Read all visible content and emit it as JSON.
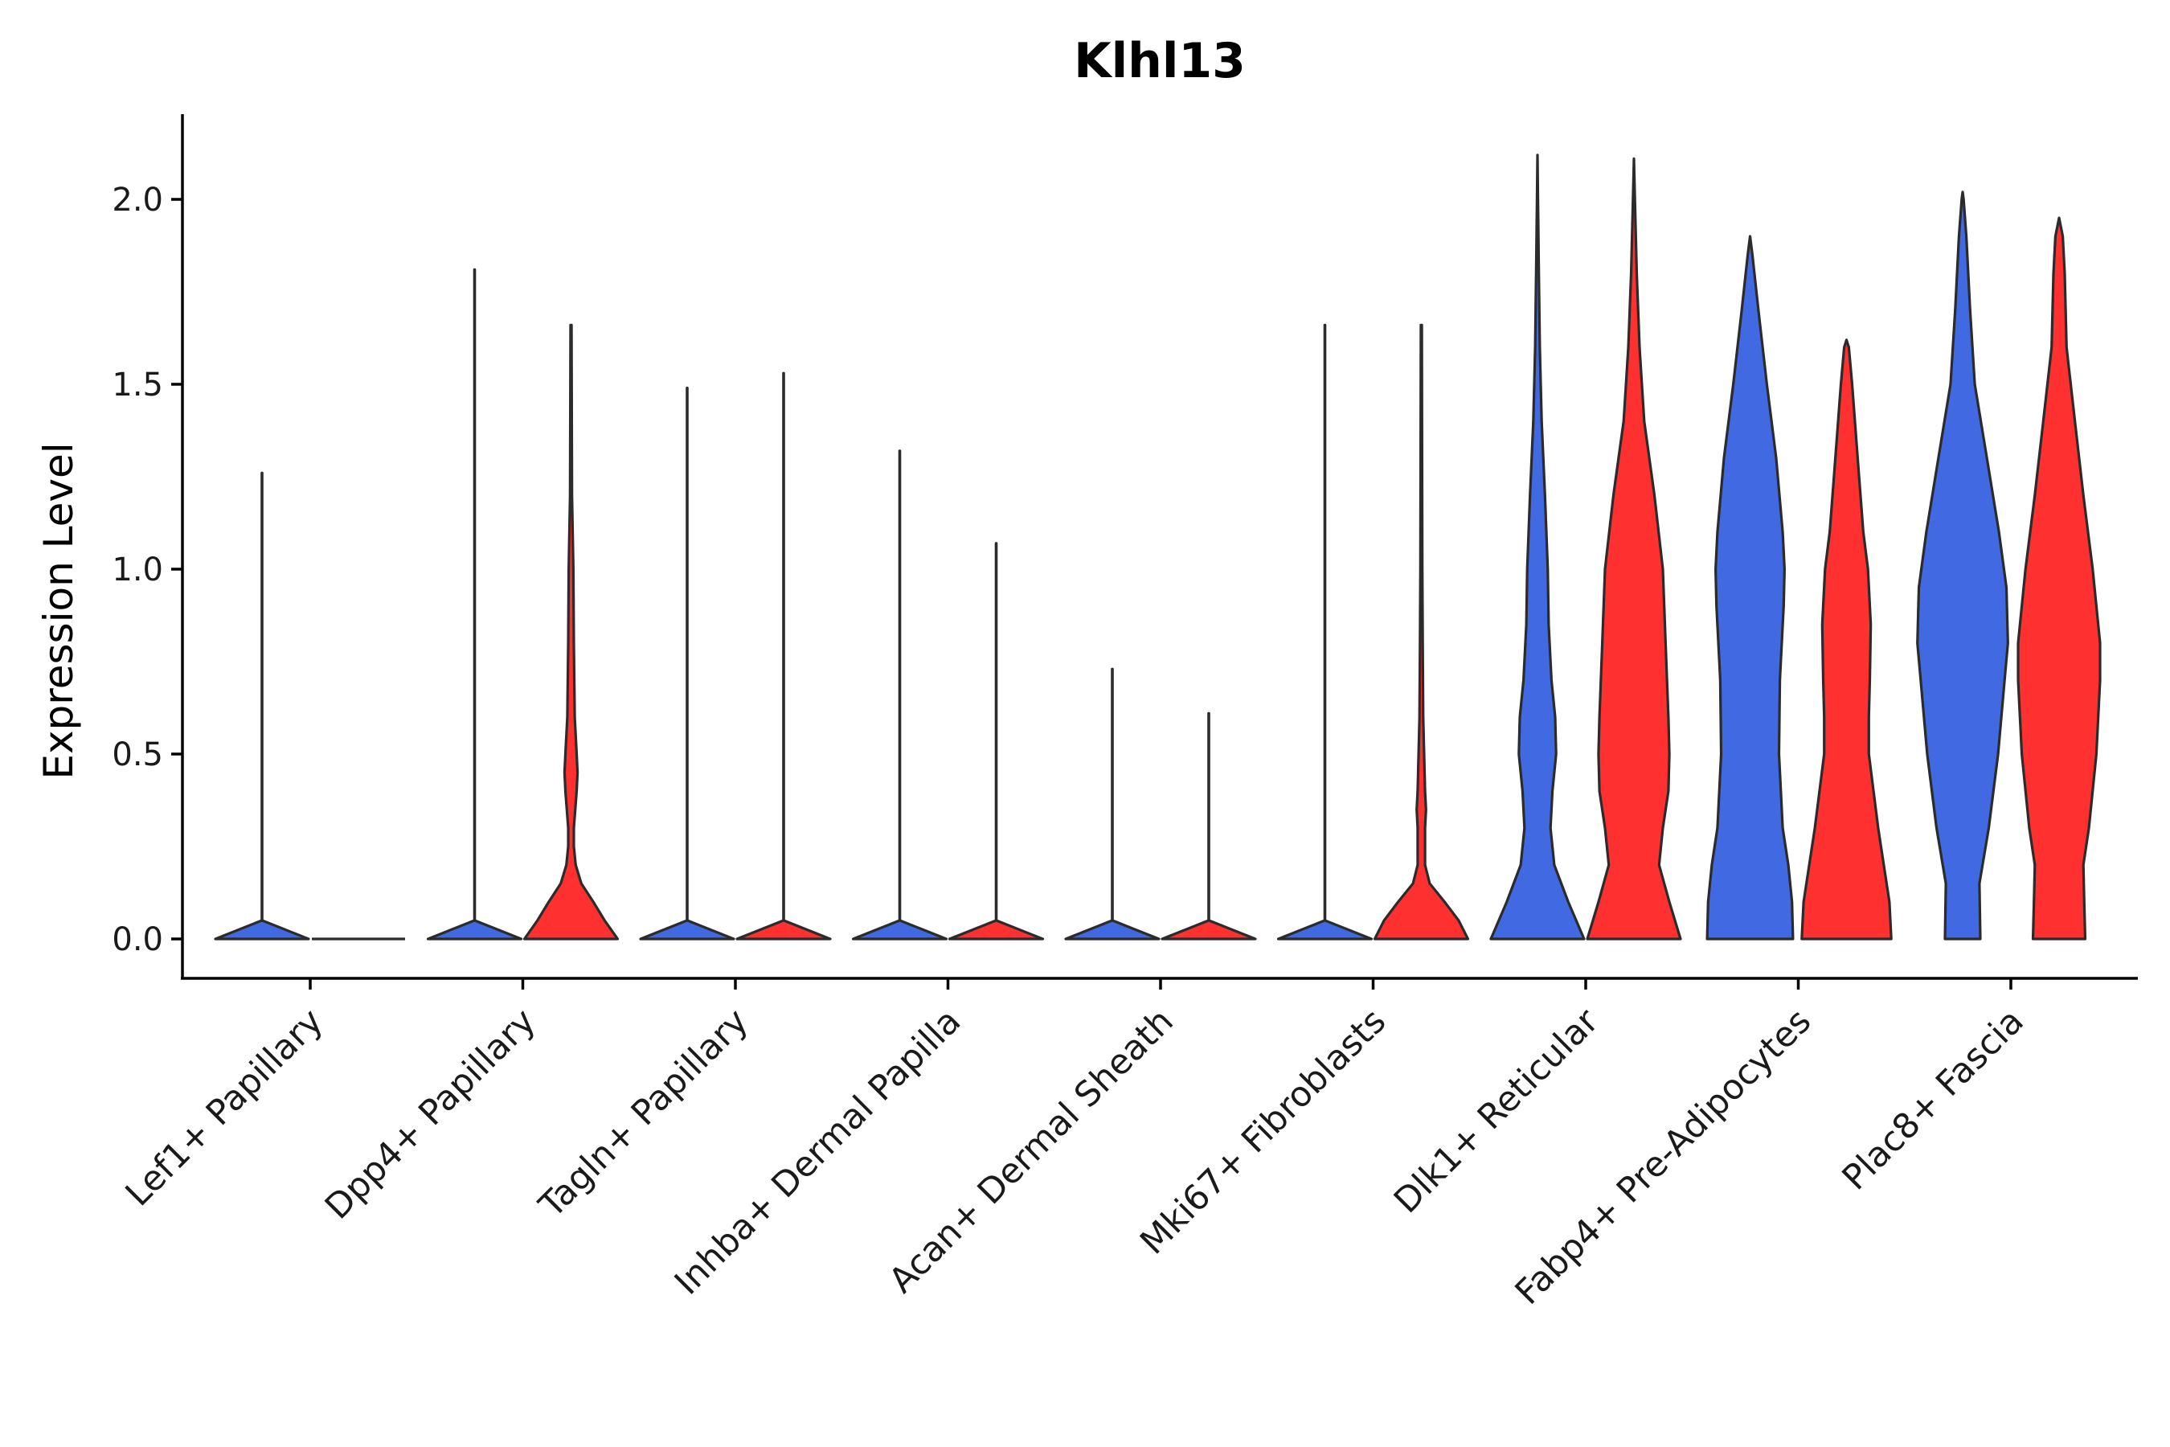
{
  "chart_data": {
    "type": "violin",
    "title": "Klhl13",
    "xlabel": "",
    "ylabel": "Expression Level",
    "ylim": [
      -0.1,
      2.23
    ],
    "yticks": [
      0.0,
      0.5,
      1.0,
      1.5,
      2.0
    ],
    "ytick_labels": [
      "0.0",
      "0.5",
      "1.0",
      "1.5",
      "2.0"
    ],
    "legend": "none",
    "colors": {
      "group_a": "#4169E1",
      "group_b": "#FF3030",
      "outline": "#2b2b2b"
    },
    "categories": [
      "Lef1+ Papillary",
      "Dpp4+ Papillary",
      "Tagln+ Papillary",
      "Inhba+ Dermal Papilla",
      "Acan+ Dermal Sheath",
      "Mki67+ Fibroblasts",
      "Dlk1+ Reticular",
      "Fabp4+ Pre-Adipocytes",
      "Plac8+ Fascia"
    ],
    "series": [
      {
        "name": "group_a",
        "color": "#4169E1",
        "violins": [
          {
            "max": 1.26,
            "density": [
              [
                0,
                1
              ],
              [
                0.05,
                0.004
              ],
              [
                1.26,
                0.004
              ]
            ]
          },
          {
            "max": 1.81,
            "density": [
              [
                0,
                1
              ],
              [
                0.05,
                0.004
              ],
              [
                1.81,
                0.004
              ]
            ]
          },
          {
            "max": 1.49,
            "density": [
              [
                0,
                1
              ],
              [
                0.05,
                0.004
              ],
              [
                1.49,
                0.004
              ]
            ]
          },
          {
            "max": 1.32,
            "density": [
              [
                0,
                1
              ],
              [
                0.05,
                0.004
              ],
              [
                1.32,
                0.004
              ]
            ]
          },
          {
            "max": 0.73,
            "density": [
              [
                0,
                1
              ],
              [
                0.05,
                0.004
              ],
              [
                0.73,
                0.004
              ]
            ]
          },
          {
            "max": 1.66,
            "density": [
              [
                0,
                1
              ],
              [
                0.05,
                0.004
              ],
              [
                1.66,
                0.004
              ]
            ]
          },
          {
            "max": 2.12,
            "density": [
              [
                0,
                1
              ],
              [
                0.1,
                0.66
              ],
              [
                0.2,
                0.36
              ],
              [
                0.3,
                0.28
              ],
              [
                0.4,
                0.32
              ],
              [
                0.5,
                0.4
              ],
              [
                0.6,
                0.38
              ],
              [
                0.7,
                0.3
              ],
              [
                0.85,
                0.24
              ],
              [
                1.0,
                0.22
              ],
              [
                1.2,
                0.16
              ],
              [
                1.4,
                0.09
              ],
              [
                1.6,
                0.05
              ],
              [
                1.8,
                0.03
              ],
              [
                2.0,
                0.01
              ],
              [
                2.12,
                0.0
              ]
            ]
          },
          {
            "max": 1.9,
            "density": [
              [
                0,
                0.92
              ],
              [
                0.1,
                0.9
              ],
              [
                0.2,
                0.82
              ],
              [
                0.3,
                0.7
              ],
              [
                0.5,
                0.62
              ],
              [
                0.7,
                0.64
              ],
              [
                0.9,
                0.72
              ],
              [
                1.0,
                0.74
              ],
              [
                1.1,
                0.7
              ],
              [
                1.3,
                0.56
              ],
              [
                1.5,
                0.36
              ],
              [
                1.7,
                0.18
              ],
              [
                1.85,
                0.05
              ],
              [
                1.9,
                0.0
              ]
            ]
          },
          {
            "max": 2.02,
            "density": [
              [
                0,
                0.38
              ],
              [
                0.15,
                0.36
              ],
              [
                0.3,
                0.56
              ],
              [
                0.5,
                0.76
              ],
              [
                0.7,
                0.9
              ],
              [
                0.8,
                0.97
              ],
              [
                0.95,
                0.94
              ],
              [
                1.1,
                0.78
              ],
              [
                1.3,
                0.52
              ],
              [
                1.5,
                0.26
              ],
              [
                1.7,
                0.16
              ],
              [
                1.9,
                0.08
              ],
              [
                2.0,
                0.02
              ],
              [
                2.02,
                0.0
              ]
            ]
          }
        ]
      },
      {
        "name": "group_b",
        "color": "#FF3030",
        "violins": [
          {
            "max": 0.0,
            "density": [
              [
                0,
                1
              ],
              [
                0.01,
                0.0
              ]
            ]
          },
          {
            "max": 1.66,
            "density": [
              [
                0,
                1
              ],
              [
                0.05,
                0.72
              ],
              [
                0.1,
                0.48
              ],
              [
                0.15,
                0.22
              ],
              [
                0.2,
                0.1
              ],
              [
                0.25,
                0.06
              ],
              [
                0.3,
                0.06
              ],
              [
                0.4,
                0.12
              ],
              [
                0.45,
                0.14
              ],
              [
                0.5,
                0.12
              ],
              [
                0.6,
                0.08
              ],
              [
                0.8,
                0.06
              ],
              [
                1.0,
                0.05
              ],
              [
                1.2,
                0.02
              ],
              [
                1.66,
                0.01
              ]
            ]
          },
          {
            "max": 1.53,
            "density": [
              [
                0,
                1
              ],
              [
                0.05,
                0.004
              ],
              [
                1.53,
                0.004
              ]
            ]
          },
          {
            "max": 1.07,
            "density": [
              [
                0,
                1
              ],
              [
                0.05,
                0.004
              ],
              [
                1.07,
                0.004
              ]
            ]
          },
          {
            "max": 0.61,
            "density": [
              [
                0,
                1
              ],
              [
                0.05,
                0.004
              ],
              [
                0.61,
                0.004
              ]
            ]
          },
          {
            "max": 1.66,
            "density": [
              [
                0,
                1
              ],
              [
                0.05,
                0.8
              ],
              [
                0.1,
                0.5
              ],
              [
                0.15,
                0.18
              ],
              [
                0.2,
                0.08
              ],
              [
                0.3,
                0.08
              ],
              [
                0.35,
                0.1
              ],
              [
                0.4,
                0.08
              ],
              [
                0.6,
                0.04
              ],
              [
                0.8,
                0.03
              ],
              [
                1.0,
                0.02
              ],
              [
                1.66,
                0.01
              ]
            ]
          },
          {
            "max": 2.11,
            "density": [
              [
                0,
                1
              ],
              [
                0.1,
                0.76
              ],
              [
                0.2,
                0.54
              ],
              [
                0.3,
                0.62
              ],
              [
                0.4,
                0.74
              ],
              [
                0.5,
                0.76
              ],
              [
                0.6,
                0.74
              ],
              [
                0.8,
                0.68
              ],
              [
                1.0,
                0.62
              ],
              [
                1.2,
                0.44
              ],
              [
                1.4,
                0.22
              ],
              [
                1.6,
                0.12
              ],
              [
                1.8,
                0.06
              ],
              [
                2.0,
                0.02
              ],
              [
                2.11,
                0.0
              ]
            ]
          },
          {
            "max": 1.62,
            "density": [
              [
                0,
                0.96
              ],
              [
                0.1,
                0.92
              ],
              [
                0.2,
                0.8
              ],
              [
                0.3,
                0.68
              ],
              [
                0.4,
                0.58
              ],
              [
                0.5,
                0.48
              ],
              [
                0.6,
                0.48
              ],
              [
                0.7,
                0.5
              ],
              [
                0.85,
                0.52
              ],
              [
                1.0,
                0.46
              ],
              [
                1.1,
                0.36
              ],
              [
                1.3,
                0.24
              ],
              [
                1.5,
                0.12
              ],
              [
                1.6,
                0.05
              ],
              [
                1.62,
                0.0
              ]
            ]
          },
          {
            "max": 1.95,
            "density": [
              [
                0,
                0.56
              ],
              [
                0.1,
                0.54
              ],
              [
                0.2,
                0.52
              ],
              [
                0.3,
                0.64
              ],
              [
                0.5,
                0.8
              ],
              [
                0.7,
                0.88
              ],
              [
                0.8,
                0.88
              ],
              [
                1.0,
                0.72
              ],
              [
                1.2,
                0.52
              ],
              [
                1.4,
                0.34
              ],
              [
                1.6,
                0.16
              ],
              [
                1.8,
                0.12
              ],
              [
                1.9,
                0.08
              ],
              [
                1.95,
                0.0
              ]
            ]
          }
        ]
      }
    ]
  }
}
